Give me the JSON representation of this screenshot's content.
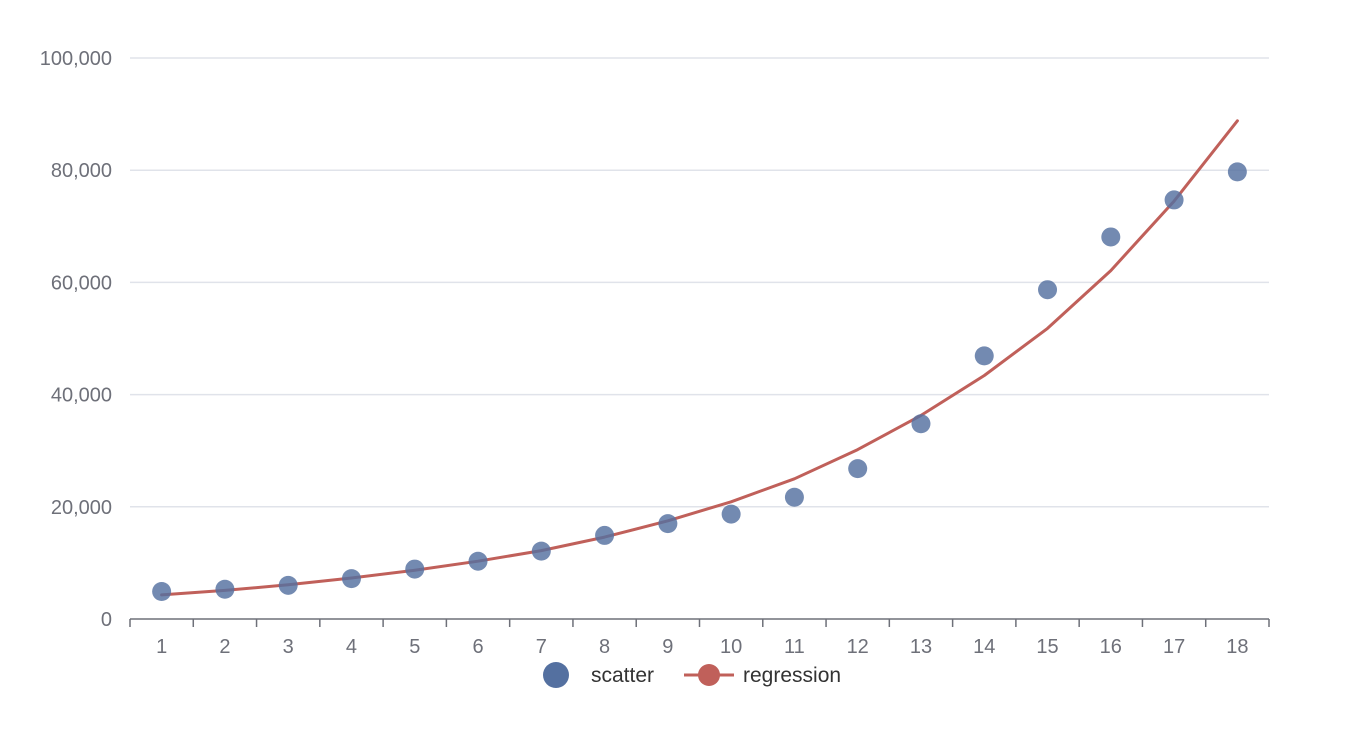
{
  "chart_data": {
    "type": "scatter",
    "x_categories": [
      "1",
      "2",
      "3",
      "4",
      "5",
      "6",
      "7",
      "8",
      "9",
      "10",
      "11",
      "12",
      "13",
      "14",
      "15",
      "16",
      "17",
      "18"
    ],
    "y_ticks": [
      "0",
      "20,000",
      "40,000",
      "60,000",
      "80,000",
      "100,000"
    ],
    "ylim": [
      0,
      100000
    ],
    "grid": true,
    "legend_position": "bottom-center",
    "series": [
      {
        "name": "scatter",
        "type": "scatter",
        "color": "#5470a0",
        "x": [
          1,
          2,
          3,
          4,
          5,
          6,
          7,
          8,
          9,
          10,
          11,
          12,
          13,
          14,
          15,
          16,
          17,
          18
        ],
        "y": [
          4900,
          5300,
          6000,
          7200,
          8900,
          10300,
          12100,
          14900,
          17000,
          18700,
          21700,
          26800,
          34800,
          46900,
          58700,
          68100,
          74700,
          79700
        ]
      },
      {
        "name": "regression",
        "type": "line",
        "color": "#c0605a",
        "x": [
          1,
          2,
          3,
          4,
          5,
          6,
          7,
          8,
          9,
          10,
          11,
          12,
          13,
          14,
          15,
          16,
          17,
          18
        ],
        "y": [
          4300,
          5100,
          6100,
          7300,
          8700,
          10300,
          12200,
          14600,
          17500,
          20900,
          25000,
          30200,
          36300,
          43400,
          51800,
          62100,
          74500,
          88800
        ]
      }
    ]
  }
}
